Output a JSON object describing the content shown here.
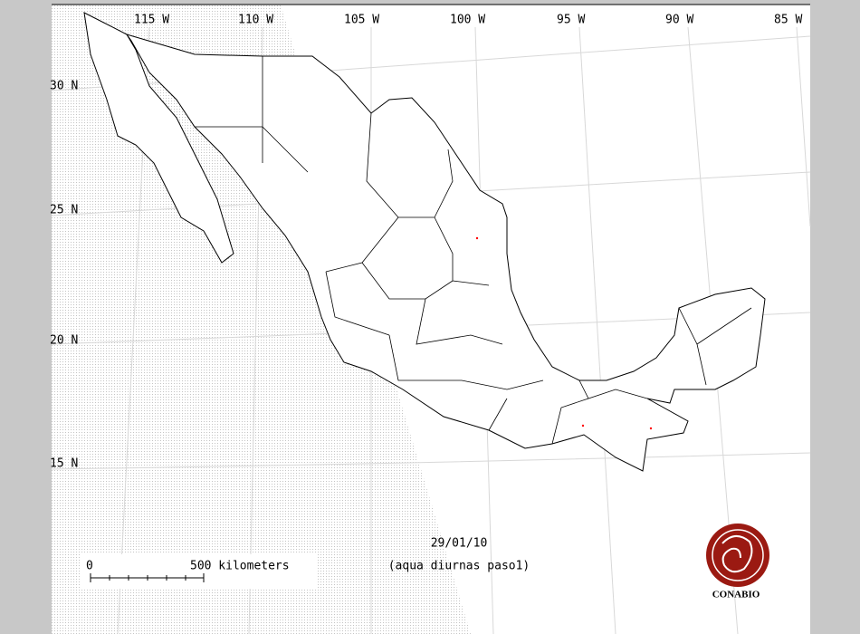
{
  "longitude_labels": [
    "115 W",
    "110 W",
    "105 W",
    "100 W",
    "95 W",
    "90 W",
    "85 W"
  ],
  "latitude_labels": [
    "30 N",
    "25 N",
    "20 N",
    "15 N"
  ],
  "date": "29/01/10",
  "caption": "(aqua diurnas paso1)",
  "scale_bar": {
    "start": "0",
    "end": "500 kilometers"
  },
  "logo": "CONABIO"
}
